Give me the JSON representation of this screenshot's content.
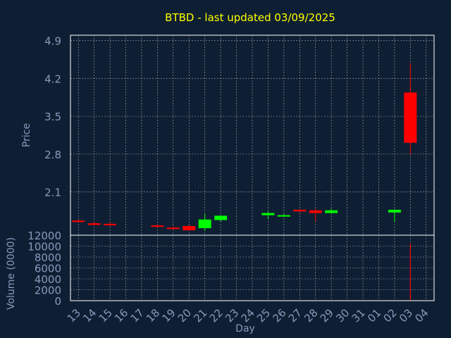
{
  "chart_data": [
    {
      "type": "candlestick",
      "title": "BTBD - last updated 03/09/2025",
      "xlabel": "Day",
      "ylabel": "Price",
      "ylim": [
        1.3,
        5.0
      ],
      "yticks": [
        "4.9",
        "4.2",
        "3.5",
        "2.8",
        "2.1"
      ],
      "grid": true,
      "candles": [
        {
          "day": "13",
          "open": 1.57,
          "high": 1.59,
          "low": 1.55,
          "close": 1.56
        },
        {
          "day": "14",
          "open": 1.52,
          "high": 1.55,
          "low": 1.48,
          "close": 1.49
        },
        {
          "day": "15",
          "open": 1.51,
          "high": 1.54,
          "low": 1.46,
          "close": 1.49
        },
        {
          "day": "18",
          "open": 1.48,
          "high": 1.5,
          "low": 1.44,
          "close": 1.46
        },
        {
          "day": "19",
          "open": 1.44,
          "high": 1.47,
          "low": 1.4,
          "close": 1.42
        },
        {
          "day": "20",
          "open": 1.47,
          "high": 1.48,
          "low": 1.38,
          "close": 1.39
        },
        {
          "day": "21",
          "open": 1.43,
          "high": 1.69,
          "low": 1.38,
          "close": 1.59
        },
        {
          "day": "22",
          "open": 1.58,
          "high": 1.67,
          "low": 1.55,
          "close": 1.66
        },
        {
          "day": "25",
          "open": 1.67,
          "high": 1.74,
          "low": 1.6,
          "close": 1.71
        },
        {
          "day": "26",
          "open": 1.66,
          "high": 1.69,
          "low": 1.64,
          "close": 1.67
        },
        {
          "day": "27",
          "open": 1.77,
          "high": 1.78,
          "low": 1.72,
          "close": 1.74
        },
        {
          "day": "28",
          "open": 1.76,
          "high": 1.79,
          "low": 1.56,
          "close": 1.71
        },
        {
          "day": "29",
          "open": 1.71,
          "high": 1.79,
          "low": 1.7,
          "close": 1.76
        },
        {
          "day": "02",
          "open": 1.72,
          "high": 1.78,
          "low": 1.54,
          "close": 1.77
        },
        {
          "day": "03",
          "open": 3.94,
          "high": 4.48,
          "low": 2.8,
          "close": 3.01
        }
      ]
    },
    {
      "type": "bar",
      "ylabel": "Volume (0000)",
      "xlabel": "Day",
      "ylim": [
        0,
        12000
      ],
      "yticks": [
        "12000",
        "10000",
        "8000",
        "6000",
        "4000",
        "2000",
        "0"
      ],
      "categories": [
        "13",
        "14",
        "15",
        "16",
        "17",
        "18",
        "19",
        "20",
        "21",
        "22",
        "23",
        "24",
        "25",
        "26",
        "27",
        "28",
        "29",
        "30",
        "31",
        "01",
        "02",
        "03",
        "04"
      ],
      "values": [
        0,
        0,
        0,
        0,
        0,
        0,
        0,
        0,
        0,
        0,
        0,
        0,
        0,
        0,
        0,
        0,
        0,
        0,
        0,
        0,
        0,
        10500,
        0
      ]
    }
  ],
  "colors": {
    "background": "#0f1f33",
    "title": "#ffff00",
    "axis_text": "#8899bb",
    "up": "#00ff00",
    "down": "#ff0000",
    "grid": "#ffffff",
    "frame": "#ffffff"
  }
}
